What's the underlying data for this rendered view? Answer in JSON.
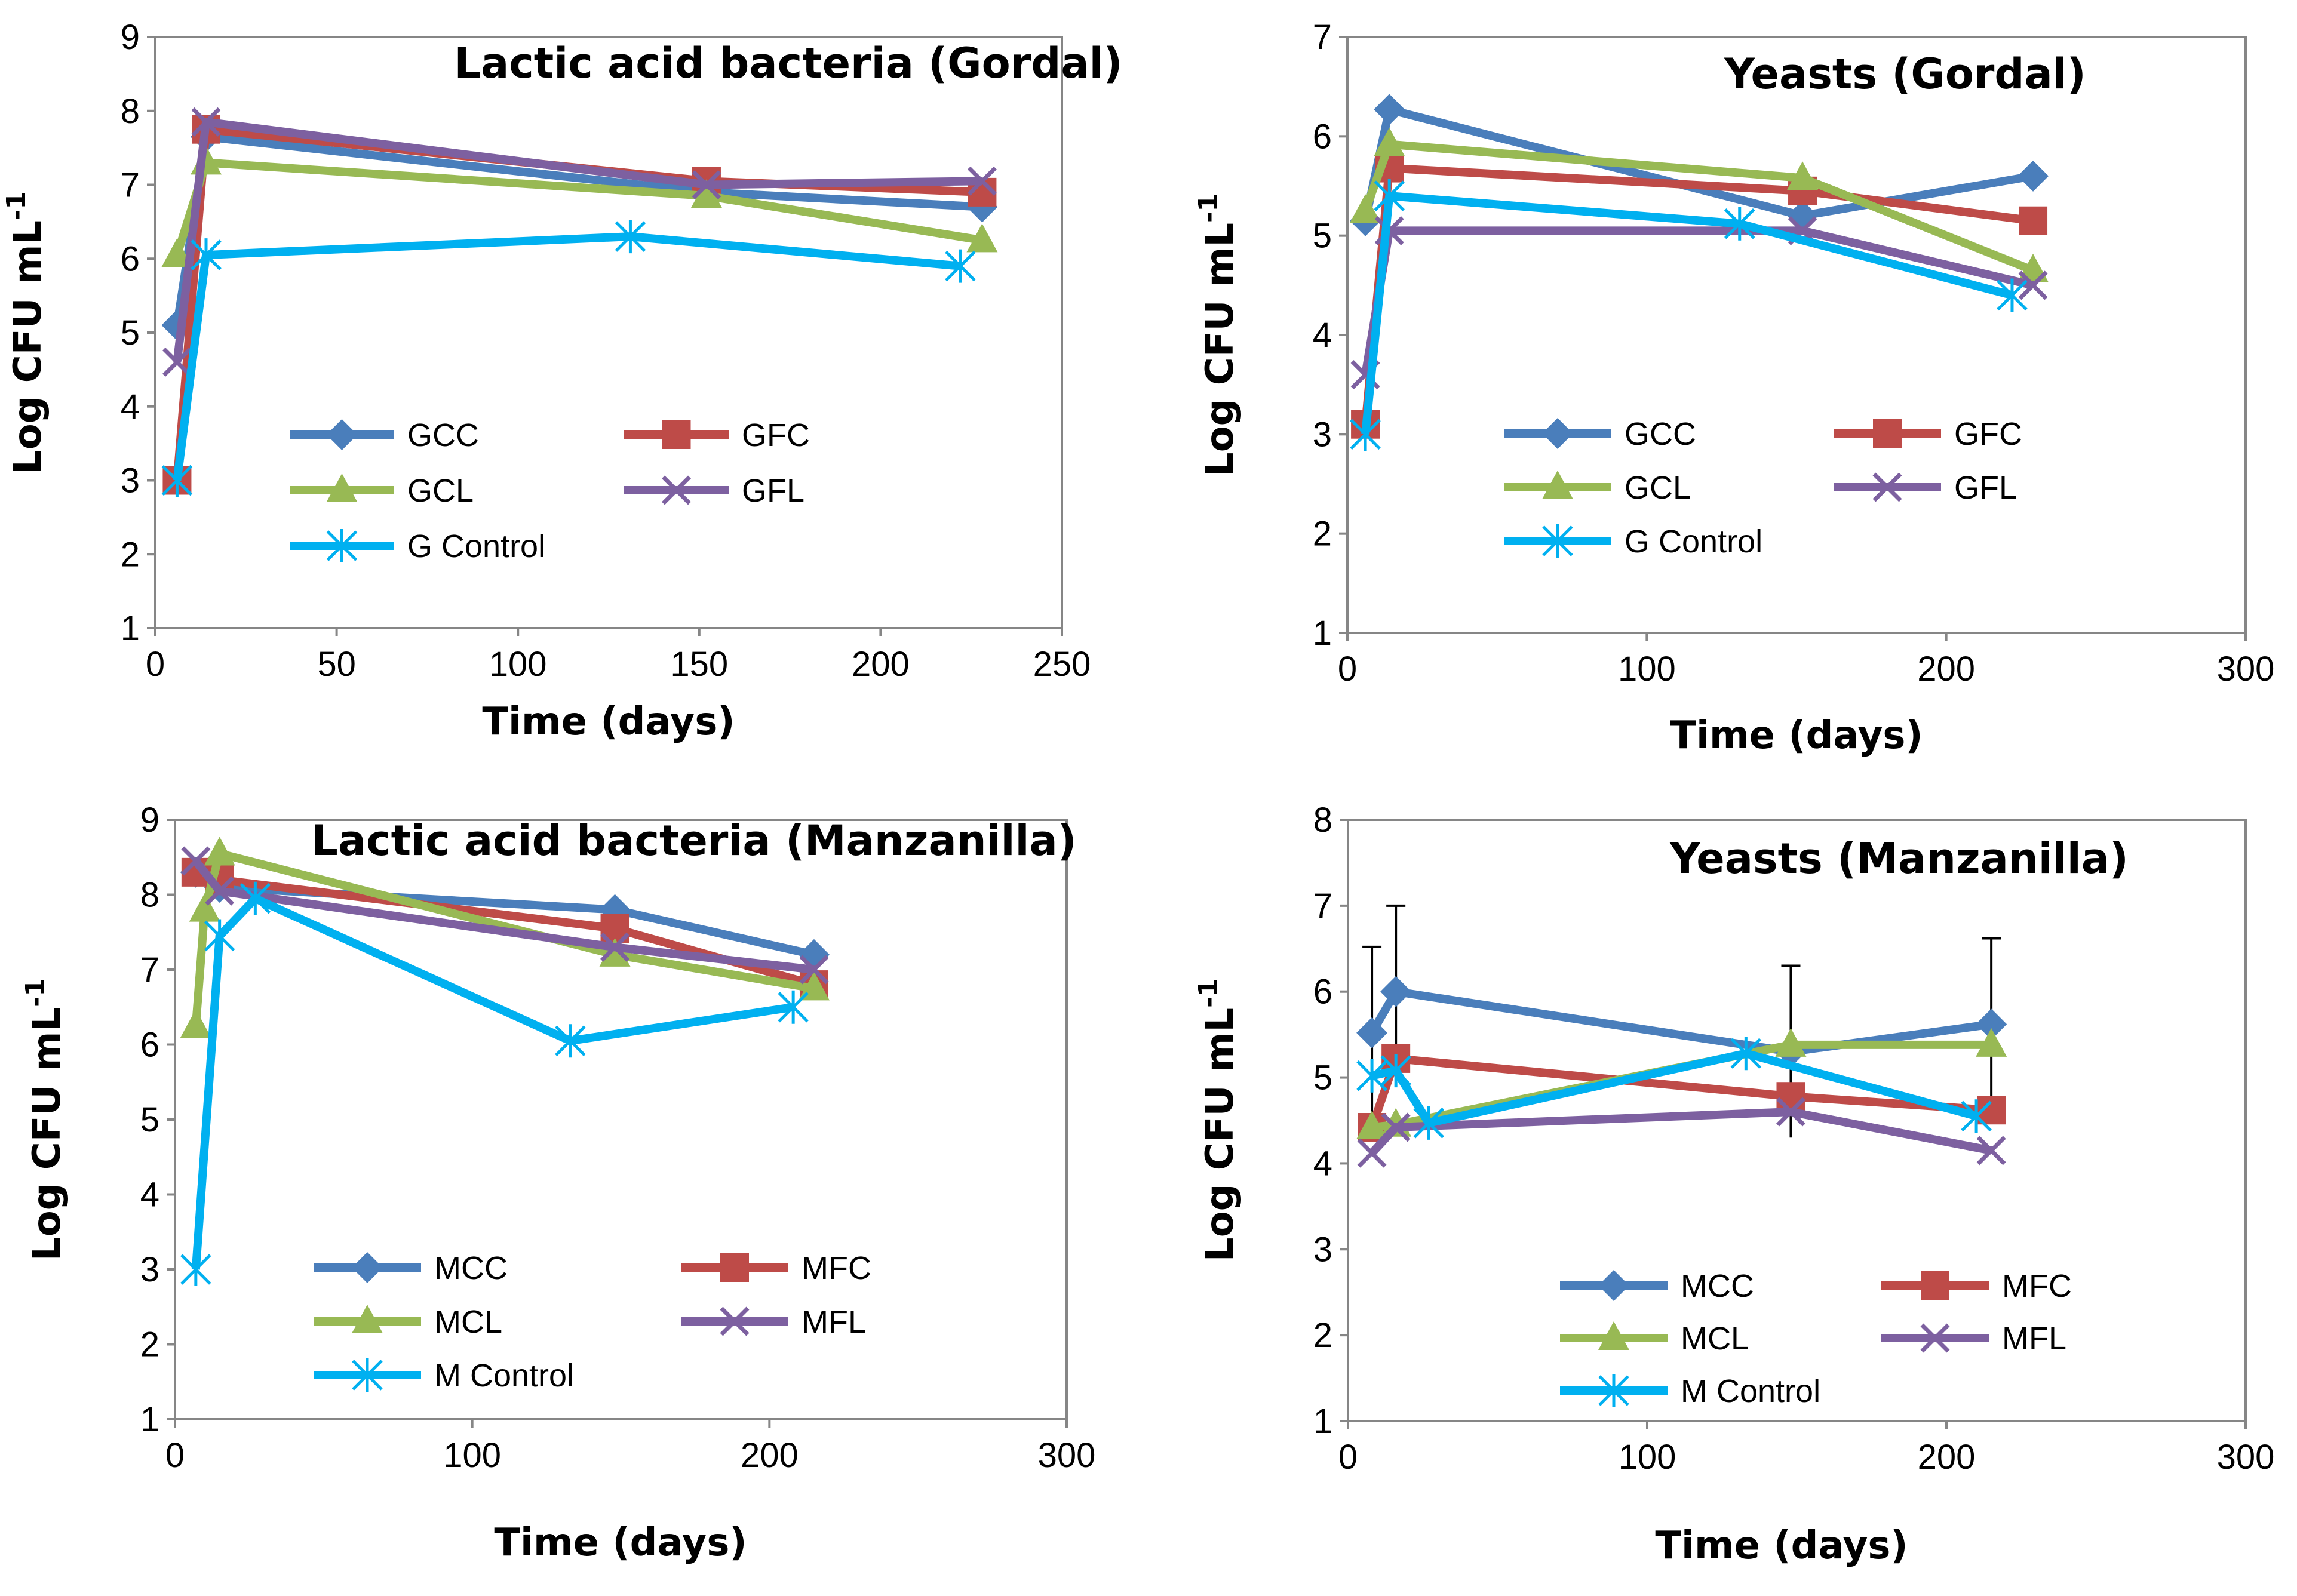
{
  "chart_data": [
    {
      "type": "line",
      "title": "Lactic acid bacteria (Gordal)",
      "xlabel": "Time (days)",
      "ylabel": "Log CFU mL",
      "ylabel_sup": "-1",
      "xlim": [
        0,
        250
      ],
      "ylim": [
        1,
        9
      ],
      "xticks": [
        0,
        50,
        100,
        150,
        200,
        250
      ],
      "yticks": [
        1,
        2,
        3,
        4,
        5,
        6,
        7,
        8,
        9
      ],
      "legend": "center-left",
      "series": [
        {
          "name": "GCC",
          "color": "#4A7EBB",
          "marker": "diamond",
          "x": [
            6,
            14,
            152,
            228
          ],
          "y": [
            5.1,
            7.65,
            6.9,
            6.7
          ]
        },
        {
          "name": "GFC",
          "color": "#BE4B48",
          "marker": "square",
          "x": [
            6,
            14,
            152,
            228
          ],
          "y": [
            3.0,
            7.75,
            7.05,
            6.9
          ]
        },
        {
          "name": "GCL",
          "color": "#98B954",
          "marker": "triangle",
          "x": [
            6,
            14,
            152,
            228
          ],
          "y": [
            6.05,
            7.3,
            6.85,
            6.25
          ]
        },
        {
          "name": "GFL",
          "color": "#7D60A0",
          "marker": "x",
          "x": [
            6,
            14,
            152,
            228
          ],
          "y": [
            4.6,
            7.85,
            7.0,
            7.05
          ]
        },
        {
          "name": "G Control",
          "color": "#00B0F0",
          "marker": "star",
          "x": [
            6,
            14,
            131,
            222
          ],
          "y": [
            3.0,
            6.05,
            6.3,
            5.9
          ]
        }
      ]
    },
    {
      "type": "line",
      "title": "Yeasts (Gordal)",
      "xlabel": "Time (days)",
      "ylabel": "Log CFU mL",
      "ylabel_sup": "-1",
      "xlim": [
        0,
        300
      ],
      "ylim": [
        1,
        7
      ],
      "xticks": [
        0,
        100,
        200,
        300
      ],
      "yticks": [
        1,
        2,
        3,
        4,
        5,
        6,
        7
      ],
      "legend": "bottom",
      "series": [
        {
          "name": "GCC",
          "color": "#4A7EBB",
          "marker": "diamond",
          "x": [
            6,
            14,
            152,
            229
          ],
          "y": [
            5.15,
            6.27,
            5.2,
            5.6
          ]
        },
        {
          "name": "GFC",
          "color": "#BE4B48",
          "marker": "square",
          "x": [
            6,
            14,
            152,
            229
          ],
          "y": [
            3.1,
            5.68,
            5.45,
            5.15
          ]
        },
        {
          "name": "GCL",
          "color": "#98B954",
          "marker": "triangle",
          "x": [
            6,
            14,
            152,
            229
          ],
          "y": [
            5.25,
            5.92,
            5.58,
            4.65
          ]
        },
        {
          "name": "GFL",
          "color": "#7D60A0",
          "marker": "x",
          "x": [
            6,
            14,
            152,
            229
          ],
          "y": [
            3.6,
            5.05,
            5.05,
            4.5
          ]
        },
        {
          "name": "G Control",
          "color": "#00B0F0",
          "marker": "star",
          "x": [
            6,
            14,
            131,
            222
          ],
          "y": [
            3.0,
            5.4,
            5.12,
            4.4
          ]
        }
      ]
    },
    {
      "type": "line",
      "title": "Lactic acid bacteria (Manzanilla)",
      "xlabel": "Time (days)",
      "ylabel": "Log CFU mL",
      "ylabel_sup": "-1",
      "xlim": [
        0,
        300
      ],
      "ylim": [
        1,
        9
      ],
      "xticks": [
        0,
        100,
        200,
        300
      ],
      "yticks": [
        1,
        2,
        3,
        4,
        5,
        6,
        7,
        8,
        9
      ],
      "legend": "bottom",
      "series": [
        {
          "name": "MCC",
          "color": "#4A7EBB",
          "marker": "diamond",
          "x": [
            7,
            15,
            148,
            215
          ],
          "y": [
            8.3,
            8.1,
            7.8,
            7.2
          ]
        },
        {
          "name": "MFC",
          "color": "#BE4B48",
          "marker": "square",
          "x": [
            7,
            15,
            148,
            215
          ],
          "y": [
            8.3,
            8.2,
            7.55,
            6.8
          ]
        },
        {
          "name": "MCL",
          "color": "#98B954",
          "marker": "triangle",
          "x": [
            7,
            10,
            15,
            148,
            215
          ],
          "y": [
            6.25,
            7.8,
            8.55,
            7.2,
            6.75
          ]
        },
        {
          "name": "MFL",
          "color": "#7D60A0",
          "marker": "x",
          "x": [
            7,
            15,
            148,
            215
          ],
          "y": [
            8.45,
            8.05,
            7.3,
            7.0
          ]
        },
        {
          "name": "M Control",
          "color": "#00B0F0",
          "marker": "star",
          "x": [
            7,
            15,
            27,
            133,
            208
          ],
          "y": [
            3.0,
            7.45,
            7.95,
            6.05,
            6.5
          ]
        }
      ]
    },
    {
      "type": "line",
      "title": "Yeasts (Manzanilla)",
      "xlabel": "Time (days)",
      "ylabel": "Log CFU mL",
      "ylabel_sup": "-1",
      "xlim": [
        0,
        300
      ],
      "ylim": [
        1,
        8
      ],
      "xticks": [
        0,
        100,
        200,
        300
      ],
      "yticks": [
        1,
        2,
        3,
        4,
        5,
        6,
        7,
        8
      ],
      "legend": "bottom",
      "series": [
        {
          "name": "MCC",
          "color": "#4A7EBB",
          "marker": "diamond",
          "x": [
            8,
            16,
            148,
            215
          ],
          "y": [
            5.52,
            6.0,
            5.3,
            5.62
          ],
          "errors": [
            1.0,
            1.0,
            1.0,
            1.0
          ]
        },
        {
          "name": "MFC",
          "color": "#BE4B48",
          "marker": "square",
          "x": [
            8,
            16,
            148,
            215
          ],
          "y": [
            4.42,
            5.22,
            4.78,
            4.62
          ]
        },
        {
          "name": "MCL",
          "color": "#98B954",
          "marker": "triangle",
          "x": [
            8,
            16,
            148,
            215
          ],
          "y": [
            4.42,
            4.45,
            5.38,
            5.38
          ]
        },
        {
          "name": "MFL",
          "color": "#7D60A0",
          "marker": "x",
          "x": [
            8,
            16,
            148,
            215
          ],
          "y": [
            4.12,
            4.42,
            4.6,
            4.15
          ]
        },
        {
          "name": "M Control",
          "color": "#00B0F0",
          "marker": "star",
          "x": [
            8,
            16,
            27,
            133,
            210
          ],
          "y": [
            5.02,
            5.08,
            4.47,
            5.28,
            4.55
          ]
        }
      ]
    }
  ]
}
